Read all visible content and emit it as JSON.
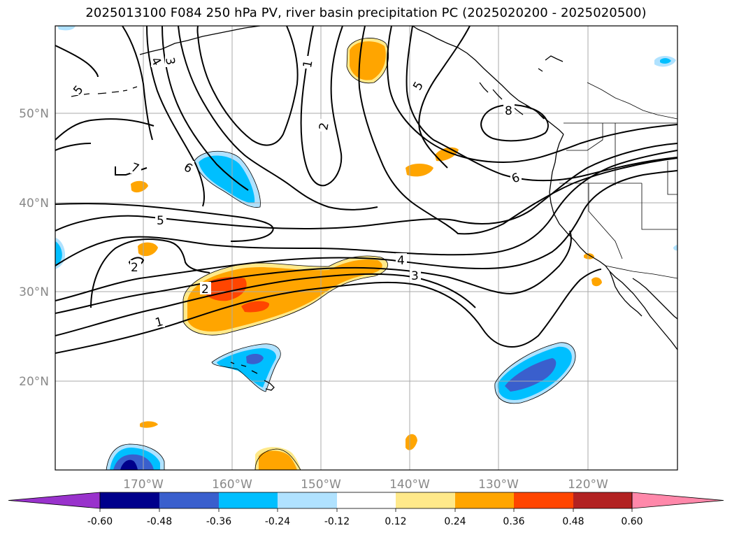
{
  "title": "2025013100 F084 250 hPa PV, river basin precipitation PC (2025020200 - 2025020500)",
  "map": {
    "lon_ticks": [
      "170°W",
      "160°W",
      "150°W",
      "140°W",
      "130°W",
      "120°W"
    ],
    "lat_ticks": [
      "50°N",
      "40°N",
      "30°N",
      "20°N"
    ],
    "grid": true,
    "pv_contour_labels": [
      "1",
      "2",
      "3",
      "4",
      "5",
      "6",
      "7",
      "8"
    ]
  },
  "colorbar": {
    "levels": [
      "-0.60",
      "-0.48",
      "-0.36",
      "-0.24",
      "-0.12",
      "0.12",
      "0.24",
      "0.36",
      "0.48",
      "0.60"
    ],
    "colors": [
      "#9932cc",
      "#00008b",
      "#3a5fcd",
      "#00bfff",
      "#b0e2ff",
      "#ffffff",
      "#ffe98a",
      "#ffa500",
      "#ff4500",
      "#b22222",
      "#ff88aa"
    ],
    "extend": "both"
  },
  "shading_colors": {
    "neg_light": "#b0e2ff",
    "neg_mid": "#00bfff",
    "neg_strong": "#3a5fcd",
    "neg_extreme": "#00008b",
    "pos_light": "#ffe98a",
    "pos_mid": "#ffa500",
    "pos_strong": "#ff4500"
  }
}
